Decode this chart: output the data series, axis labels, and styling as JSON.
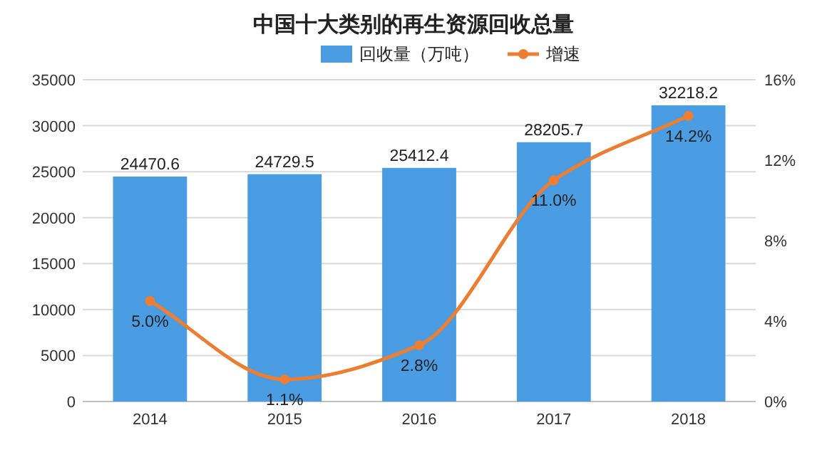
{
  "chart_data": {
    "type": "bar",
    "title": "中国十大类别的再生资源回收总量",
    "categories": [
      "2014",
      "2015",
      "2016",
      "2017",
      "2018"
    ],
    "series": [
      {
        "name": "回收量（万吨）",
        "color": "#4a9de2",
        "values": [
          24470.6,
          24729.5,
          25412.4,
          28205.7,
          32218.2
        ],
        "value_labels": [
          "24470.6",
          "24729.5",
          "25412.4",
          "28205.7",
          "32218.2"
        ]
      },
      {
        "name": "增速",
        "type": "line",
        "axis": "y2",
        "color": "#ed7d31",
        "values": [
          5.0,
          1.1,
          2.8,
          11.0,
          14.2
        ],
        "value_labels": [
          "5.0%",
          "1.1%",
          "2.8%",
          "11.0%",
          "14.2%"
        ],
        "marker": "circle"
      }
    ],
    "ylim": [
      0,
      35000
    ],
    "yticks": [
      0,
      5000,
      10000,
      15000,
      20000,
      25000,
      30000,
      35000
    ],
    "y2lim": [
      0,
      16
    ],
    "y2ticks": [
      {
        "value": 0,
        "label": "0%"
      },
      {
        "value": 4,
        "label": "4%"
      },
      {
        "value": 8,
        "label": "8%"
      },
      {
        "value": 12,
        "label": "12%"
      },
      {
        "value": 16,
        "label": "16%"
      }
    ],
    "grid": "y",
    "legend": "top"
  }
}
